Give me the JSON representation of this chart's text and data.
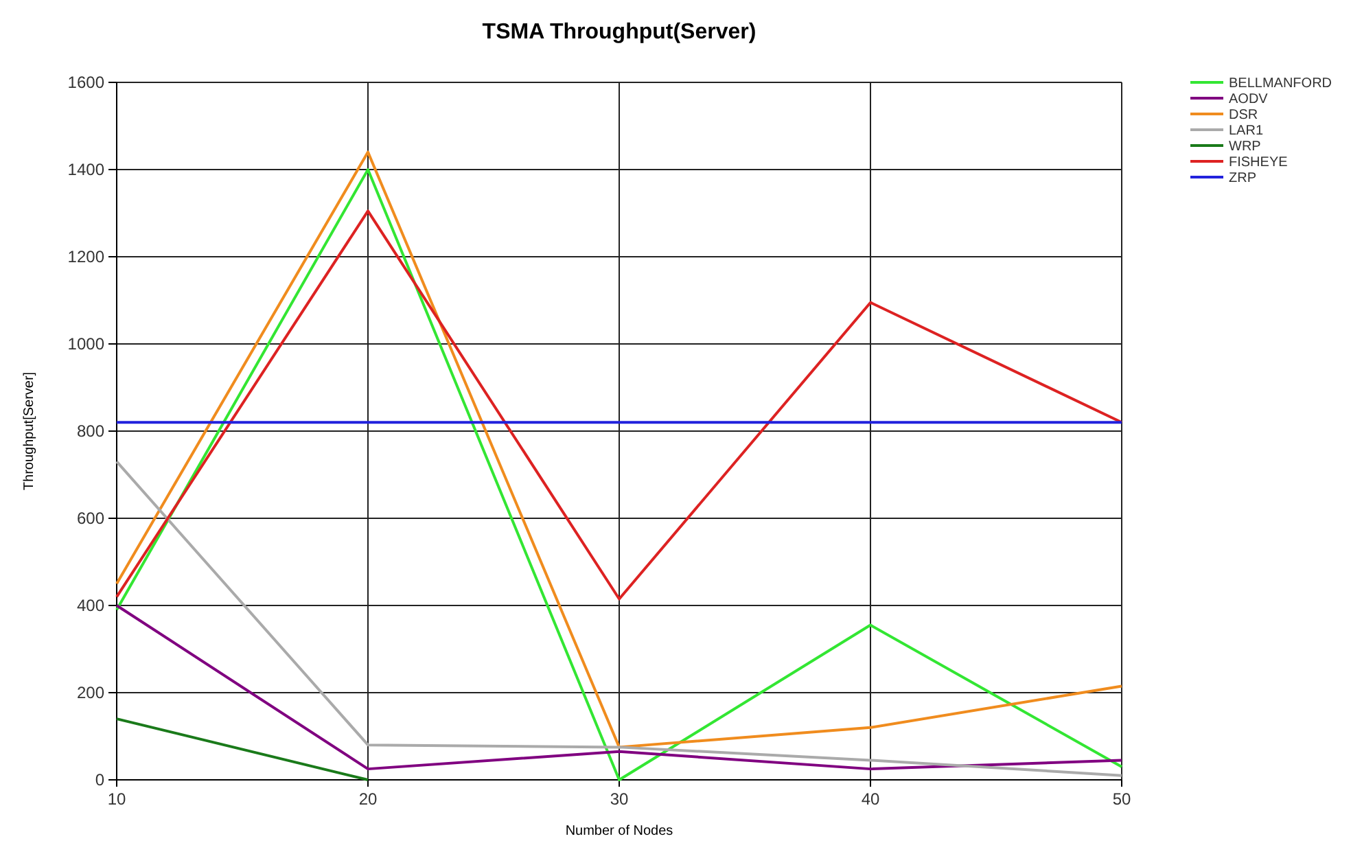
{
  "chart_data": {
    "type": "line",
    "title": "TSMA Throughput(Server)",
    "xlabel": "Number of Nodes",
    "ylabel": "Throughput[Server]",
    "x": [
      10,
      20,
      30,
      40,
      50
    ],
    "xlim": [
      10,
      50
    ],
    "xticks": [
      10,
      20,
      30,
      40,
      50
    ],
    "ylim": [
      0,
      1600
    ],
    "yticks": [
      0,
      200,
      400,
      600,
      800,
      1000,
      1200,
      1400,
      1600
    ],
    "grid": true,
    "legend": "top right",
    "marker": "none",
    "line_style": "solid",
    "series": [
      {
        "name": "BELLMANFORD",
        "color": "#33e633",
        "values": [
          390,
          1400,
          0,
          355,
          30
        ]
      },
      {
        "name": "AODV",
        "color": "#800080",
        "values": [
          400,
          25,
          65,
          25,
          45
        ]
      },
      {
        "name": "DSR",
        "color": "#f08c1e",
        "values": [
          450,
          1440,
          75,
          120,
          215
        ]
      },
      {
        "name": "LAR1",
        "color": "#aaaaaa",
        "values": [
          730,
          80,
          75,
          45,
          10
        ]
      },
      {
        "name": "WRP",
        "color": "#1a7a1a",
        "values": [
          140,
          0,
          null,
          null,
          null
        ]
      },
      {
        "name": "FISHEYE",
        "color": "#dd2222",
        "values": [
          420,
          1305,
          415,
          1095,
          820
        ]
      },
      {
        "name": "ZRP",
        "color": "#2222dd",
        "values": [
          820,
          820,
          820,
          820,
          820
        ]
      }
    ]
  }
}
